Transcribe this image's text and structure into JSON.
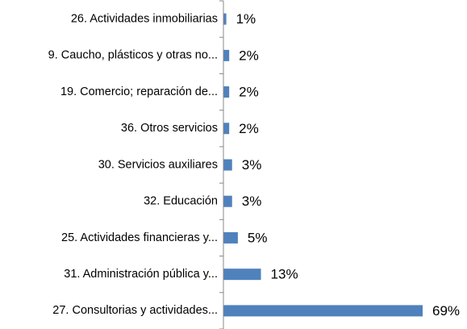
{
  "chart_data": {
    "type": "bar",
    "orientation": "horizontal",
    "color": "#4f81bd",
    "categories": [
      "26. Actividades inmobiliarias",
      "9. Caucho, plásticos y otras no...",
      "19. Comercio; reparación de...",
      "36. Otros servicios",
      "30. Servicios auxiliares",
      "32. Educación",
      "25. Actividades financieras y...",
      "31. Administración pública y...",
      "27. Consultorias y actividades..."
    ],
    "values": [
      1,
      2,
      2,
      2,
      3,
      3,
      5,
      13,
      69
    ],
    "value_labels": [
      "1%",
      "2%",
      "2%",
      "2%",
      "3%",
      "3%",
      "5%",
      "13%",
      "69%"
    ]
  }
}
